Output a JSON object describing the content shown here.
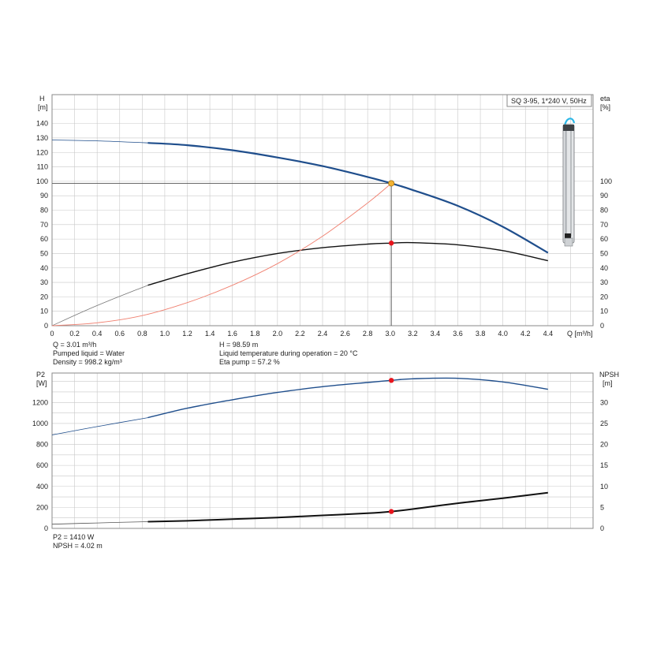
{
  "chart_data": [
    {
      "type": "line",
      "title": "SQ 3-95, 1*240 V, 50Hz",
      "xlabel": "Q [m³/h]",
      "xlim": [
        0,
        4.8
      ],
      "x_ticks": [
        "0",
        "0.2",
        "0.4",
        "0.6",
        "0.8",
        "1.0",
        "1.2",
        "1.4",
        "1.6",
        "1.8",
        "2.0",
        "2.2",
        "2.4",
        "2.6",
        "2.8",
        "3.0",
        "3.2",
        "3.4",
        "3.6",
        "3.8",
        "4.0",
        "4.2",
        "4.4"
      ],
      "y_left": {
        "label_top": "H",
        "label_unit": "[m]",
        "lim": [
          0,
          160
        ],
        "ticks": [
          "0",
          "10",
          "20",
          "30",
          "40",
          "50",
          "60",
          "70",
          "80",
          "90",
          "100",
          "110",
          "120",
          "130",
          "140"
        ]
      },
      "y_right": {
        "label_top": "eta",
        "label_unit": "[%]",
        "lim": [
          0,
          160
        ],
        "ticks": [
          "0",
          "10",
          "20",
          "30",
          "40",
          "50",
          "60",
          "70",
          "80",
          "90",
          "100"
        ]
      },
      "grid": true,
      "series": [
        {
          "key": "H",
          "axis": "left",
          "color": "#1f4e8c",
          "x": [
            0,
            0.4,
            0.85,
            1.2,
            1.6,
            2.0,
            2.4,
            2.8,
            3.01,
            3.2,
            3.6,
            4.0,
            4.4
          ],
          "y": [
            128.6,
            128.0,
            126.6,
            125.0,
            121.5,
            116.5,
            110.5,
            103.0,
            98.59,
            94.0,
            83.0,
            68.5,
            50.5
          ]
        },
        {
          "key": "eta",
          "axis": "right",
          "color": "#111111",
          "x": [
            0,
            0.4,
            0.85,
            1.2,
            1.6,
            2.0,
            2.4,
            2.8,
            3.01,
            3.2,
            3.6,
            4.0,
            4.4
          ],
          "y": [
            0,
            14,
            28,
            36,
            44,
            50,
            54,
            56.5,
            57.2,
            57.5,
            56,
            52,
            45
          ]
        },
        {
          "key": "system",
          "axis": "left",
          "color": "#f08070",
          "x": [
            0,
            0.4,
            0.8,
            1.2,
            1.6,
            2.0,
            2.4,
            2.8,
            3.01
          ],
          "y": [
            0,
            2,
            7,
            16,
            28,
            43,
            62,
            85,
            98.59
          ]
        }
      ],
      "duty_point": {
        "q": 3.01,
        "h": 98.59,
        "eta": 57.2
      }
    },
    {
      "type": "line",
      "x_ticks": [],
      "y_left": {
        "label_top": "P2",
        "label_unit": "[W]",
        "lim": [
          0,
          1480
        ],
        "ticks": [
          "0",
          "200",
          "400",
          "600",
          "800",
          "1000",
          "1200"
        ]
      },
      "y_right": {
        "label_top": "NPSH",
        "label_unit": "[m]",
        "lim": [
          0,
          37
        ],
        "ticks": [
          "0",
          "5",
          "10",
          "15",
          "20",
          "25",
          "30"
        ]
      },
      "grid": true,
      "series": [
        {
          "key": "P2",
          "axis": "left",
          "color": "#1f4e8c",
          "x": [
            0,
            0.4,
            0.85,
            1.2,
            1.6,
            2.0,
            2.4,
            2.8,
            3.01,
            3.2,
            3.6,
            4.0,
            4.4
          ],
          "y": [
            890,
            970,
            1055,
            1145,
            1225,
            1295,
            1350,
            1390,
            1410,
            1425,
            1430,
            1395,
            1325
          ]
        },
        {
          "key": "NPSH",
          "axis": "right",
          "color": "#111111",
          "x": [
            0,
            0.4,
            0.85,
            1.2,
            1.6,
            2.0,
            2.4,
            2.8,
            3.01,
            3.2,
            3.6,
            4.0,
            4.4
          ],
          "y": [
            1.0,
            1.3,
            1.6,
            1.8,
            2.2,
            2.6,
            3.1,
            3.6,
            4.02,
            4.6,
            6.0,
            7.2,
            8.5
          ]
        }
      ],
      "duty_point": {
        "q": 3.01,
        "p2": 1410,
        "npsh": 4.02
      }
    }
  ],
  "info_top": {
    "q": "Q = 3.01 m³/h",
    "liquid": "Pumped liquid = Water",
    "density": "Density = 998.2 kg/m³",
    "h": "H = 98.59 m",
    "temp": "Liquid temperature during operation = 20 °C",
    "eta": "Eta pump = 57.2 %"
  },
  "info_bottom": {
    "p2": "P2 = 1410 W",
    "npsh": "NPSH = 4.02 m"
  },
  "colors": {
    "grid": "#c8c8c8",
    "frame": "#8a8a8a",
    "duty": "#e8141c",
    "duty_yellow": "#f2b233",
    "pump_accent": "#2bb8e8"
  },
  "icons": {
    "pump": "submersible-pump-icon"
  }
}
